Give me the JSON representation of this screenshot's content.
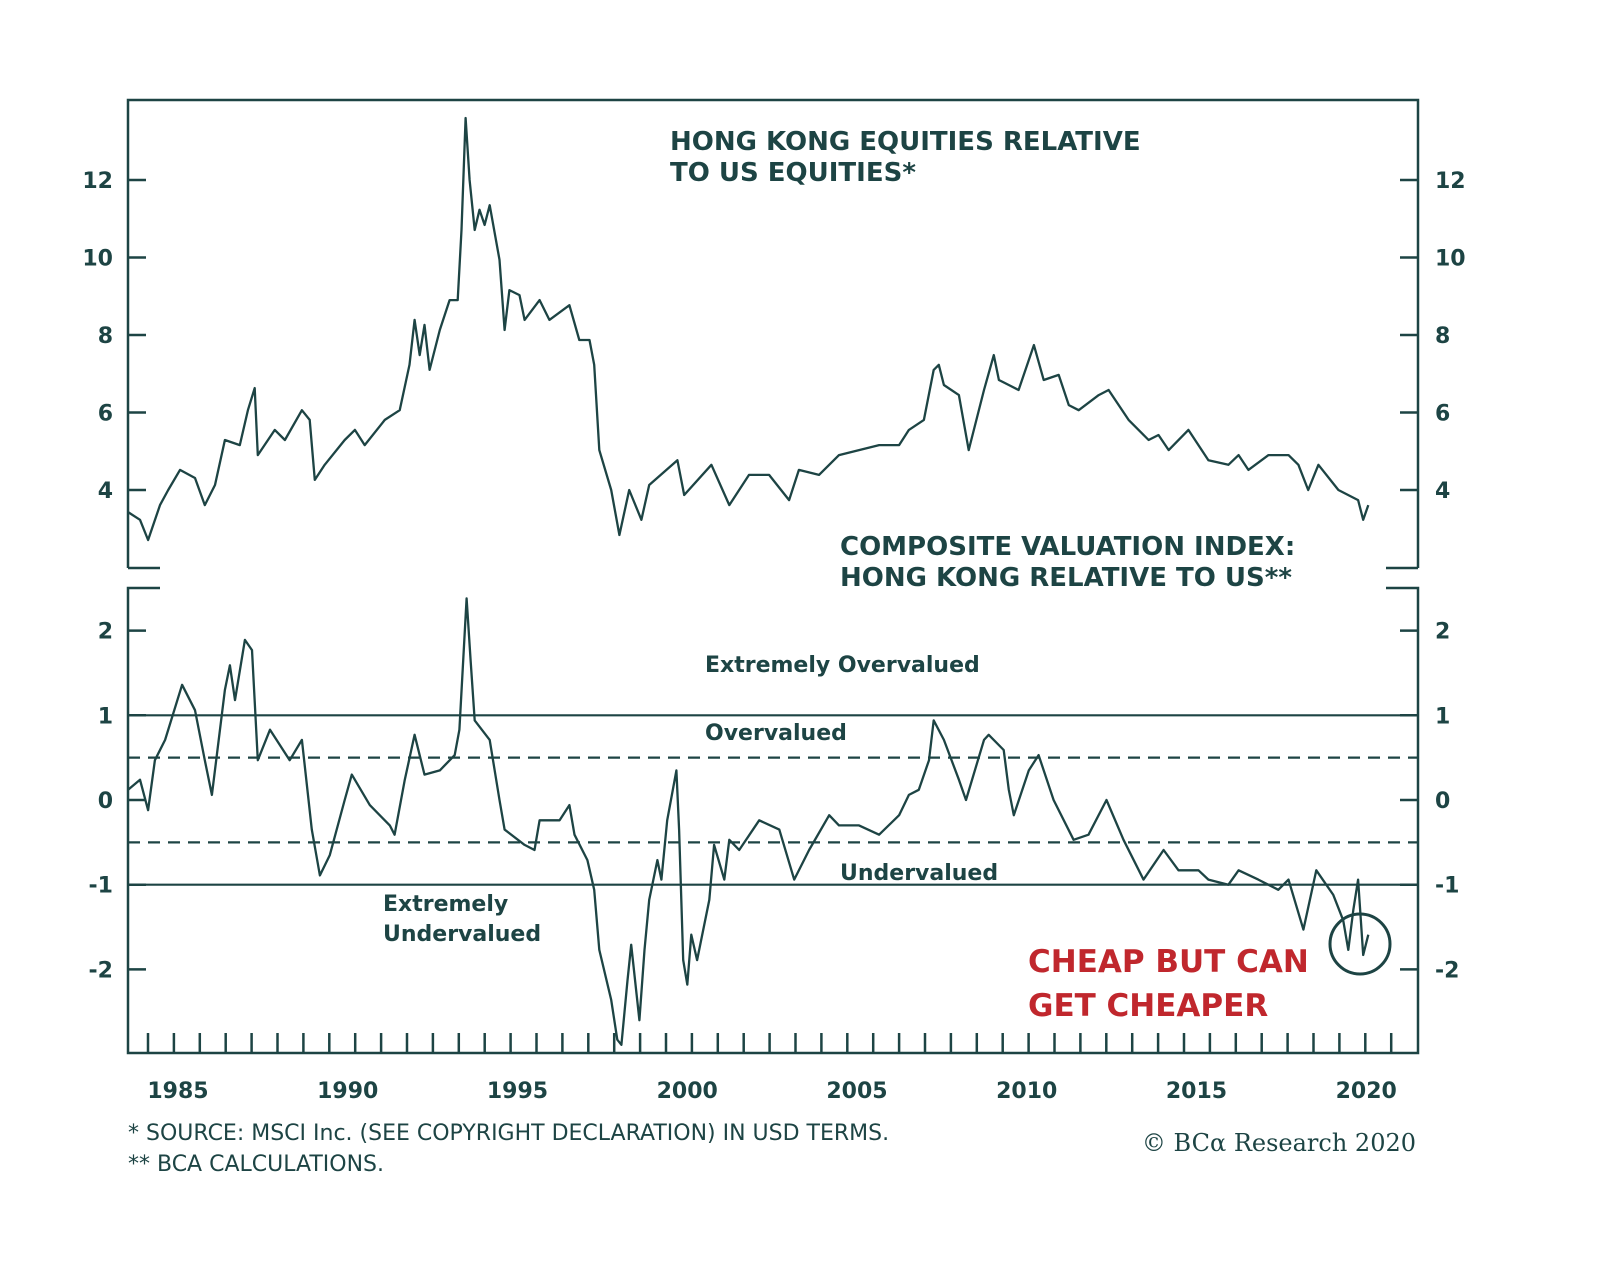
{
  "chart_data": [
    {
      "type": "line",
      "title": "HONG KONG EQUITIES RELATIVE TO US EQUITIES*",
      "title_lines": [
        "HONG KONG EQUITIES RELATIVE",
        "TO US EQUITIES*"
      ],
      "xlabel": "",
      "ylabel": "",
      "xlim": [
        1983.5,
        2021.5
      ],
      "ylim": [
        2.5,
        14
      ],
      "yticks": [
        "12",
        "10",
        "8",
        "6",
        "4"
      ],
      "ytick_values": [
        12,
        10,
        8,
        6,
        4
      ],
      "series": [
        {
          "name": "HK relative to US equities",
          "points": [
            [
              1983.53,
              3.43
            ],
            [
              1983.88,
              3.23
            ],
            [
              1984.12,
              2.71
            ],
            [
              1984.47,
              3.61
            ],
            [
              1984.71,
              4.0
            ],
            [
              1985.06,
              4.52
            ],
            [
              1985.5,
              4.31
            ],
            [
              1985.79,
              3.61
            ],
            [
              1986.09,
              4.13
            ],
            [
              1986.38,
              5.29
            ],
            [
              1986.82,
              5.16
            ],
            [
              1987.06,
              6.06
            ],
            [
              1987.26,
              6.63
            ],
            [
              1987.35,
              4.9
            ],
            [
              1987.85,
              5.55
            ],
            [
              1988.15,
              5.29
            ],
            [
              1988.65,
              6.06
            ],
            [
              1988.88,
              5.81
            ],
            [
              1989.03,
              4.26
            ],
            [
              1989.32,
              4.65
            ],
            [
              1989.91,
              5.29
            ],
            [
              1990.21,
              5.55
            ],
            [
              1990.5,
              5.16
            ],
            [
              1991.09,
              5.81
            ],
            [
              1991.53,
              6.06
            ],
            [
              1991.82,
              7.23
            ],
            [
              1991.97,
              8.39
            ],
            [
              1992.12,
              7.48
            ],
            [
              1992.26,
              8.26
            ],
            [
              1992.41,
              7.1
            ],
            [
              1992.71,
              8.13
            ],
            [
              1993.0,
              8.9
            ],
            [
              1993.24,
              8.9
            ],
            [
              1993.35,
              10.71
            ],
            [
              1993.47,
              13.6
            ],
            [
              1993.59,
              12.0
            ],
            [
              1993.74,
              10.71
            ],
            [
              1993.88,
              11.23
            ],
            [
              1994.03,
              10.84
            ],
            [
              1994.18,
              11.35
            ],
            [
              1994.47,
              9.94
            ],
            [
              1994.62,
              8.13
            ],
            [
              1994.76,
              9.16
            ],
            [
              1995.06,
              9.03
            ],
            [
              1995.21,
              8.39
            ],
            [
              1995.65,
              8.9
            ],
            [
              1995.94,
              8.39
            ],
            [
              1996.53,
              8.77
            ],
            [
              1996.82,
              7.87
            ],
            [
              1997.12,
              7.87
            ],
            [
              1997.26,
              7.23
            ],
            [
              1997.41,
              5.03
            ],
            [
              1997.76,
              4.0
            ],
            [
              1998.0,
              2.84
            ],
            [
              1998.29,
              4.0
            ],
            [
              1998.65,
              3.23
            ],
            [
              1998.88,
              4.13
            ],
            [
              1999.71,
              4.77
            ],
            [
              1999.91,
              3.87
            ],
            [
              2000.71,
              4.65
            ],
            [
              2001.24,
              3.61
            ],
            [
              2001.82,
              4.39
            ],
            [
              2002.41,
              4.39
            ],
            [
              2003.0,
              3.74
            ],
            [
              2003.29,
              4.52
            ],
            [
              2003.88,
              4.39
            ],
            [
              2004.47,
              4.9
            ],
            [
              2005.06,
              5.03
            ],
            [
              2005.65,
              5.16
            ],
            [
              2006.24,
              5.16
            ],
            [
              2006.53,
              5.55
            ],
            [
              2006.97,
              5.81
            ],
            [
              2007.26,
              7.1
            ],
            [
              2007.41,
              7.23
            ],
            [
              2007.56,
              6.71
            ],
            [
              2008.0,
              6.45
            ],
            [
              2008.29,
              5.03
            ],
            [
              2008.74,
              6.58
            ],
            [
              2009.03,
              7.48
            ],
            [
              2009.18,
              6.84
            ],
            [
              2009.47,
              6.71
            ],
            [
              2009.76,
              6.58
            ],
            [
              2010.21,
              7.74
            ],
            [
              2010.5,
              6.84
            ],
            [
              2010.94,
              6.97
            ],
            [
              2011.24,
              6.19
            ],
            [
              2011.53,
              6.06
            ],
            [
              2012.12,
              6.45
            ],
            [
              2012.41,
              6.58
            ],
            [
              2013.0,
              5.81
            ],
            [
              2013.59,
              5.29
            ],
            [
              2013.88,
              5.42
            ],
            [
              2014.18,
              5.03
            ],
            [
              2014.76,
              5.55
            ],
            [
              2015.35,
              4.77
            ],
            [
              2015.94,
              4.65
            ],
            [
              2016.24,
              4.9
            ],
            [
              2016.53,
              4.52
            ],
            [
              2017.12,
              4.9
            ],
            [
              2017.71,
              4.9
            ],
            [
              2018.0,
              4.65
            ],
            [
              2018.29,
              4.0
            ],
            [
              2018.59,
              4.65
            ],
            [
              2019.18,
              4.0
            ],
            [
              2019.76,
              3.74
            ],
            [
              2019.91,
              3.23
            ],
            [
              2020.06,
              3.61
            ]
          ]
        }
      ]
    },
    {
      "type": "line",
      "title": "COMPOSITE VALUATION INDEX: HONG KONG RELATIVE TO US**",
      "title_lines": [
        "COMPOSITE VALUATION INDEX:",
        "HONG KONG RELATIVE TO US**"
      ],
      "xlabel": "",
      "ylabel": "",
      "xlim": [
        1983.5,
        2021.5
      ],
      "ylim": [
        -2.9,
        2.5
      ],
      "yticks": [
        "2",
        "1",
        "0",
        "-1",
        "-2"
      ],
      "ytick_values": [
        2,
        1,
        0,
        -1,
        -2
      ],
      "xticks": [
        "1985",
        "1990",
        "1995",
        "2000",
        "2005",
        "2010",
        "2015",
        "2020"
      ],
      "xtick_values": [
        1985,
        1990,
        1995,
        2000,
        2005,
        2010,
        2015,
        2020
      ],
      "reference_lines": [
        {
          "value": 1,
          "style": "solid"
        },
        {
          "value": 0.5,
          "style": "dashed"
        },
        {
          "value": -0.5,
          "style": "dashed"
        },
        {
          "value": -1,
          "style": "solid"
        }
      ],
      "zone_labels": {
        "extremely_overvalued": "Extremely Overvalued",
        "overvalued": "Overvalued",
        "undervalued": "Undervalued",
        "extremely_undervalued_1": "Extremely",
        "extremely_undervalued_2": "Undervalued"
      },
      "annotation": [
        "CHEAP BUT CAN",
        "GET CHEAPER"
      ],
      "annotation_color": "#c0272d",
      "series": [
        {
          "name": "Composite valuation index",
          "points": [
            [
              1983.53,
              0.12
            ],
            [
              1983.88,
              0.24
            ],
            [
              1984.12,
              -0.12
            ],
            [
              1984.32,
              0.47
            ],
            [
              1984.62,
              0.71
            ],
            [
              1985.12,
              1.36
            ],
            [
              1985.5,
              1.06
            ],
            [
              1985.79,
              0.47
            ],
            [
              1986.0,
              0.06
            ],
            [
              1986.38,
              1.3
            ],
            [
              1986.53,
              1.59
            ],
            [
              1986.68,
              1.18
            ],
            [
              1986.97,
              1.89
            ],
            [
              1987.18,
              1.77
            ],
            [
              1987.35,
              0.47
            ],
            [
              1987.71,
              0.83
            ],
            [
              1988.29,
              0.47
            ],
            [
              1988.65,
              0.71
            ],
            [
              1988.94,
              -0.35
            ],
            [
              1989.18,
              -0.89
            ],
            [
              1989.47,
              -0.65
            ],
            [
              1989.91,
              0
            ],
            [
              1990.12,
              0.3
            ],
            [
              1990.65,
              -0.06
            ],
            [
              1991.24,
              -0.3
            ],
            [
              1991.38,
              -0.41
            ],
            [
              1991.68,
              0.24
            ],
            [
              1991.97,
              0.77
            ],
            [
              1992.26,
              0.3
            ],
            [
              1992.71,
              0.35
            ],
            [
              1993.15,
              0.53
            ],
            [
              1993.29,
              0.83
            ],
            [
              1993.5,
              2.38
            ],
            [
              1993.62,
              1.65
            ],
            [
              1993.74,
              0.94
            ],
            [
              1994.18,
              0.71
            ],
            [
              1994.47,
              0
            ],
            [
              1994.62,
              -0.35
            ],
            [
              1995.21,
              -0.53
            ],
            [
              1995.5,
              -0.59
            ],
            [
              1995.65,
              -0.24
            ],
            [
              1996.24,
              -0.24
            ],
            [
              1996.53,
              -0.06
            ],
            [
              1996.68,
              -0.41
            ],
            [
              1997.06,
              -0.71
            ],
            [
              1997.26,
              -1.06
            ],
            [
              1997.41,
              -1.77
            ],
            [
              1997.76,
              -2.36
            ],
            [
              1997.94,
              -2.83
            ],
            [
              1998.06,
              -2.89
            ],
            [
              1998.24,
              -2.13
            ],
            [
              1998.35,
              -1.71
            ],
            [
              1998.59,
              -2.6
            ],
            [
              1998.74,
              -1.77
            ],
            [
              1998.88,
              -1.18
            ],
            [
              1999.12,
              -0.71
            ],
            [
              1999.24,
              -0.94
            ],
            [
              1999.41,
              -0.24
            ],
            [
              1999.68,
              0.35
            ],
            [
              1999.76,
              -0.35
            ],
            [
              1999.88,
              -1.89
            ],
            [
              2000.0,
              -2.18
            ],
            [
              2000.12,
              -1.59
            ],
            [
              2000.29,
              -1.89
            ],
            [
              2000.65,
              -1.18
            ],
            [
              2000.79,
              -0.53
            ],
            [
              2001.09,
              -0.94
            ],
            [
              2001.24,
              -0.47
            ],
            [
              2001.53,
              -0.59
            ],
            [
              2002.12,
              -0.24
            ],
            [
              2002.71,
              -0.35
            ],
            [
              2003.15,
              -0.94
            ],
            [
              2003.59,
              -0.59
            ],
            [
              2004.18,
              -0.18
            ],
            [
              2004.47,
              -0.3
            ],
            [
              2005.06,
              -0.3
            ],
            [
              2005.65,
              -0.41
            ],
            [
              2006.24,
              -0.18
            ],
            [
              2006.53,
              0.06
            ],
            [
              2006.82,
              0.12
            ],
            [
              2007.12,
              0.47
            ],
            [
              2007.26,
              0.94
            ],
            [
              2007.56,
              0.71
            ],
            [
              2008.0,
              0.24
            ],
            [
              2008.21,
              0
            ],
            [
              2008.74,
              0.71
            ],
            [
              2008.88,
              0.77
            ],
            [
              2009.32,
              0.59
            ],
            [
              2009.47,
              0.12
            ],
            [
              2009.62,
              -0.18
            ],
            [
              2010.06,
              0.35
            ],
            [
              2010.35,
              0.53
            ],
            [
              2010.79,
              0
            ],
            [
              2011.38,
              -0.47
            ],
            [
              2011.82,
              -0.41
            ],
            [
              2012.35,
              0
            ],
            [
              2012.85,
              -0.47
            ],
            [
              2013.44,
              -0.94
            ],
            [
              2014.03,
              -0.59
            ],
            [
              2014.47,
              -0.83
            ],
            [
              2015.06,
              -0.83
            ],
            [
              2015.35,
              -0.94
            ],
            [
              2015.94,
              -1.0
            ],
            [
              2016.24,
              -0.83
            ],
            [
              2016.82,
              -0.94
            ],
            [
              2017.41,
              -1.06
            ],
            [
              2017.71,
              -0.94
            ],
            [
              2018.15,
              -1.53
            ],
            [
              2018.53,
              -0.83
            ],
            [
              2019.03,
              -1.12
            ],
            [
              2019.32,
              -1.42
            ],
            [
              2019.47,
              -1.77
            ],
            [
              2019.62,
              -1.3
            ],
            [
              2019.76,
              -0.94
            ],
            [
              2019.91,
              -1.83
            ],
            [
              2020.06,
              -1.59
            ]
          ]
        }
      ]
    }
  ],
  "footnotes": {
    "source": "*  SOURCE: MSCI Inc. (SEE COPYRIGHT DECLARATION) IN USD TERMS.",
    "calc": "** BCA CALCULATIONS."
  },
  "logo": "© BCα Research 2020",
  "colors": {
    "line": "#1d4444",
    "accent": "#c0272d"
  }
}
